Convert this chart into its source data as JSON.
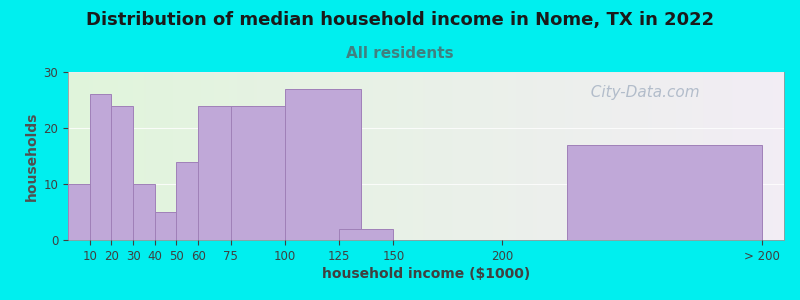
{
  "title": "Distribution of median household income in Nome, TX in 2022",
  "subtitle": "All residents",
  "xlabel": "household income ($1000)",
  "ylabel": "households",
  "background_outer": "#00EFEF",
  "background_inner_left": "#dff0d8",
  "background_inner_right": "#ede8f0",
  "bar_color": "#c0a8d8",
  "bar_edge_color": "#a080b8",
  "watermark": "  City-Data.com",
  "categories": [
    "10",
    "20",
    "30",
    "40",
    "50",
    "60",
    "75",
    "100",
    "125",
    "150",
    "200",
    "> 200"
  ],
  "values": [
    10,
    26,
    24,
    10,
    5,
    14,
    24,
    24,
    27,
    2,
    0,
    17
  ],
  "bar_lefts": [
    0,
    10,
    20,
    30,
    40,
    50,
    60,
    75,
    100,
    125,
    150,
    230
  ],
  "bar_widths": [
    10,
    10,
    10,
    10,
    10,
    15,
    25,
    25,
    35,
    25,
    50,
    90
  ],
  "ylim": [
    0,
    30
  ],
  "yticks": [
    0,
    10,
    20,
    30
  ],
  "xtick_positions": [
    10,
    20,
    30,
    40,
    50,
    60,
    75,
    100,
    125,
    150,
    200,
    320
  ],
  "xtick_labels": [
    "10",
    "20",
    "30",
    "40",
    "50",
    "60",
    "75",
    "100",
    "125",
    "150",
    "200",
    "> 200"
  ],
  "xlim": [
    0,
    330
  ],
  "title_fontsize": 13,
  "subtitle_fontsize": 11,
  "axis_label_fontsize": 10,
  "tick_fontsize": 8.5,
  "watermark_color": "#a8b4c4",
  "watermark_fontsize": 11,
  "subtitle_color": "#408080",
  "title_color": "#1a1a1a",
  "tick_color": "#404040",
  "ylabel_color": "#505050",
  "xlabel_color": "#404040"
}
